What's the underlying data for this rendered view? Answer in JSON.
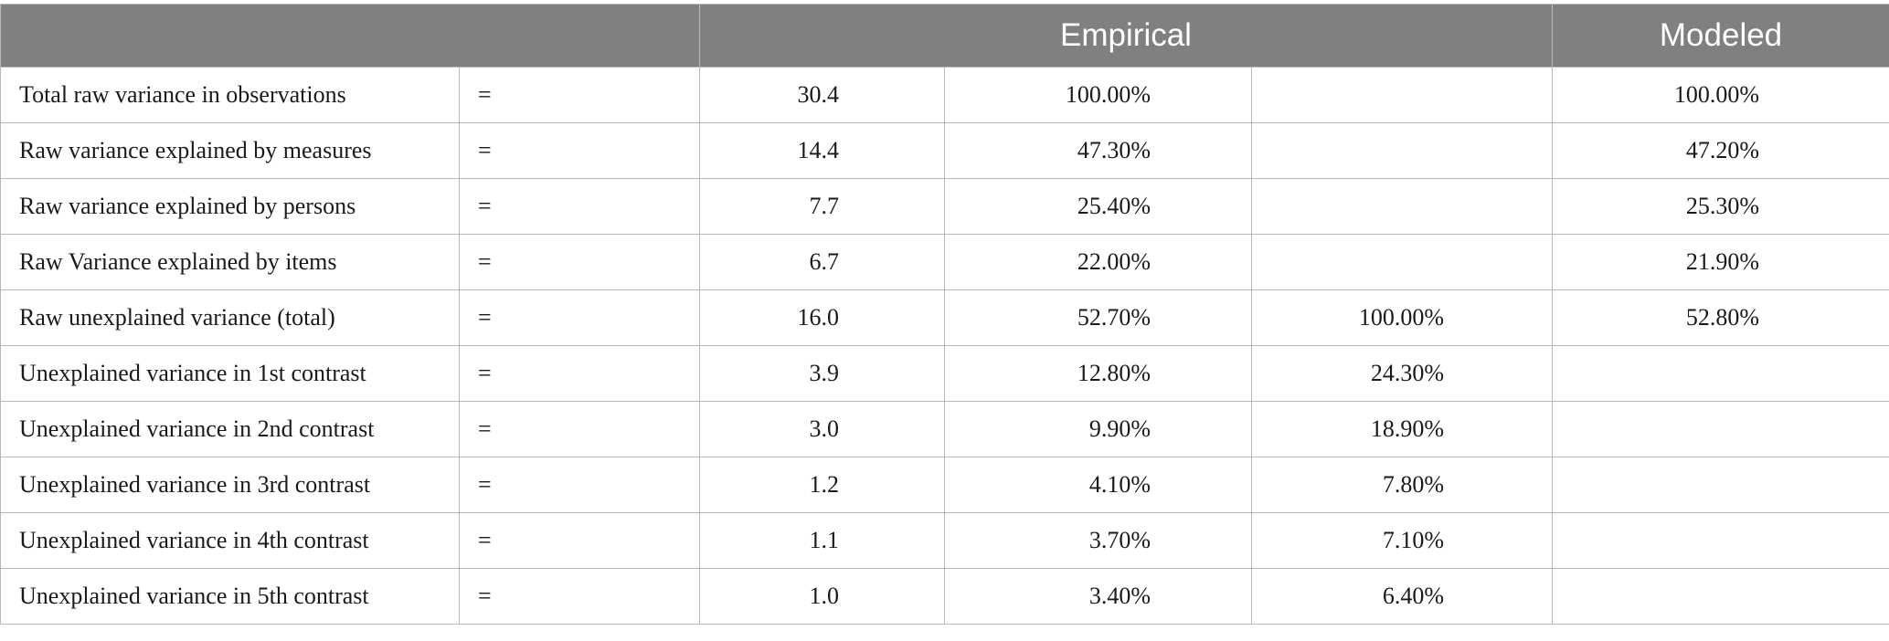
{
  "header": {
    "empirical_label": "Empirical",
    "modeled_label": "Modeled"
  },
  "rows": [
    {
      "label": "Total raw variance in observations",
      "eq": "=",
      "value": "30.4",
      "empirical_pct": "100.00%",
      "unexplained_pct": "",
      "modeled_pct": "100.00%"
    },
    {
      "label": "Raw variance explained by measures",
      "eq": "=",
      "value": "14.4",
      "empirical_pct": "47.30%",
      "unexplained_pct": "",
      "modeled_pct": "47.20%"
    },
    {
      "label": "Raw variance explained by persons",
      "eq": "=",
      "value": "7.7",
      "empirical_pct": "25.40%",
      "unexplained_pct": "",
      "modeled_pct": "25.30%"
    },
    {
      "label": "Raw Variance explained by items",
      "eq": "=",
      "value": "6.7",
      "empirical_pct": "22.00%",
      "unexplained_pct": "",
      "modeled_pct": "21.90%"
    },
    {
      "label": "Raw unexplained variance (total)",
      "eq": "=",
      "value": "16.0",
      "empirical_pct": "52.70%",
      "unexplained_pct": "100.00%",
      "modeled_pct": "52.80%"
    },
    {
      "label": "Unexplained variance in 1st contrast",
      "eq": "=",
      "value": "3.9",
      "empirical_pct": "12.80%",
      "unexplained_pct": "24.30%",
      "modeled_pct": ""
    },
    {
      "label": "Unexplained variance in 2nd contrast",
      "eq": "=",
      "value": "3.0",
      "empirical_pct": "9.90%",
      "unexplained_pct": "18.90%",
      "modeled_pct": ""
    },
    {
      "label": "Unexplained variance in 3rd contrast",
      "eq": "=",
      "value": "1.2",
      "empirical_pct": "4.10%",
      "unexplained_pct": "7.80%",
      "modeled_pct": ""
    },
    {
      "label": "Unexplained variance in 4th contrast",
      "eq": "=",
      "value": "1.1",
      "empirical_pct": "3.70%",
      "unexplained_pct": "7.10%",
      "modeled_pct": ""
    },
    {
      "label": "Unexplained variance in 5th contrast",
      "eq": "=",
      "value": "1.0",
      "empirical_pct": "3.40%",
      "unexplained_pct": "6.40%",
      "modeled_pct": ""
    }
  ]
}
